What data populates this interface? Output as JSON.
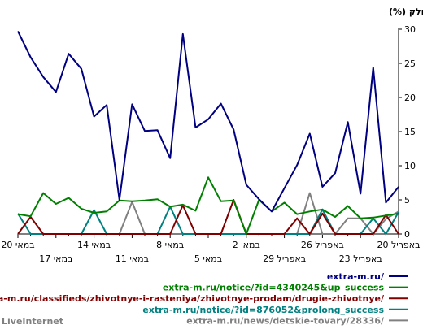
{
  "chart_data": {
    "type": "line",
    "ylabel": "(%) חלק",
    "ylim": [
      0,
      30
    ],
    "yticks": [
      0,
      5,
      10,
      15,
      20,
      25,
      30
    ],
    "grid": false,
    "legend_position": "bottom",
    "x_direction": "right-to-left",
    "x_tick_labels": [
      {
        "label": "20 באפריל",
        "index": 0,
        "row": 1
      },
      {
        "label": "23 באפריל",
        "index": 3,
        "row": 2
      },
      {
        "label": "26 באפריל",
        "index": 6,
        "row": 1
      },
      {
        "label": "29 באפריל",
        "index": 9,
        "row": 2
      },
      {
        "label": "2 במאי",
        "index": 12,
        "row": 1
      },
      {
        "label": "5 במאי",
        "index": 15,
        "row": 2
      },
      {
        "label": "8 במאי",
        "index": 18,
        "row": 1
      },
      {
        "label": "11 במאי",
        "index": 21,
        "row": 2
      },
      {
        "label": "14 במאי",
        "index": 24,
        "row": 1
      },
      {
        "label": "17 במאי",
        "index": 27,
        "row": 2
      },
      {
        "label": "20 במאי",
        "index": 30,
        "row": 1
      }
    ],
    "series": [
      {
        "name": "extra-m.ru/",
        "color": "#000080",
        "values": [
          6.9,
          4.6,
          24.4,
          5.9,
          16.4,
          8.9,
          6.9,
          14.7,
          10.1,
          6.7,
          3.3,
          5.1,
          7.2,
          15.3,
          19.1,
          16.8,
          15.6,
          29.3,
          11.1,
          15.2,
          15.1,
          19.0,
          5.0,
          18.9,
          17.2,
          24.2,
          26.4,
          20.8,
          23.0,
          25.9,
          29.7
        ]
      },
      {
        "name": "extra-m.ru/notice/?id=4340245&up_success",
        "color": "#008000",
        "values": [
          3.0,
          2.7,
          2.4,
          2.3,
          4.1,
          2.5,
          3.6,
          3.3,
          2.9,
          4.6,
          3.3,
          5.0,
          0,
          4.9,
          4.8,
          8.3,
          3.4,
          4.3,
          4.0,
          5.1,
          4.9,
          4.8,
          4.9,
          3.3,
          3.1,
          3.7,
          5.3,
          4.4,
          6.0,
          2.6,
          2.9
        ]
      },
      {
        "name": "extra-m.ru/classifieds/zhivotnye-i-rasteniya/zhivotnye-prodam/drugie-zhivotnye/",
        "color": "#800000",
        "values": [
          0,
          2.8,
          0,
          0,
          0,
          0,
          3.0,
          0,
          2.3,
          0,
          0,
          0,
          0,
          5.0,
          0,
          0,
          0,
          4.2,
          0,
          0,
          0,
          0,
          0,
          0,
          0,
          0,
          0,
          0,
          0,
          2.5,
          0
        ]
      },
      {
        "name": "extra-m.ru/notice/?id=876052&prolong_success",
        "color": "#008080",
        "values": [
          3.2,
          0,
          2.3,
          0,
          0,
          0,
          3.6,
          0,
          0,
          0,
          0,
          0,
          0,
          0,
          0,
          0,
          0,
          0,
          4.0,
          0,
          0,
          0,
          0,
          0,
          3.5,
          0,
          0,
          0,
          0,
          0,
          3.0
        ]
      },
      {
        "name": "extra-m.ru/news/detskie-tovary/28336/",
        "color": "#808080",
        "values": [
          3.3,
          2.2,
          0,
          2.3,
          2.3,
          0,
          0,
          6.0,
          0,
          0,
          0,
          0,
          0,
          0,
          0,
          0,
          0,
          0,
          0,
          0,
          0,
          4.7,
          0,
          0,
          0,
          0,
          0,
          0,
          0,
          0,
          0
        ]
      }
    ]
  },
  "watermark": "LiveInternet"
}
